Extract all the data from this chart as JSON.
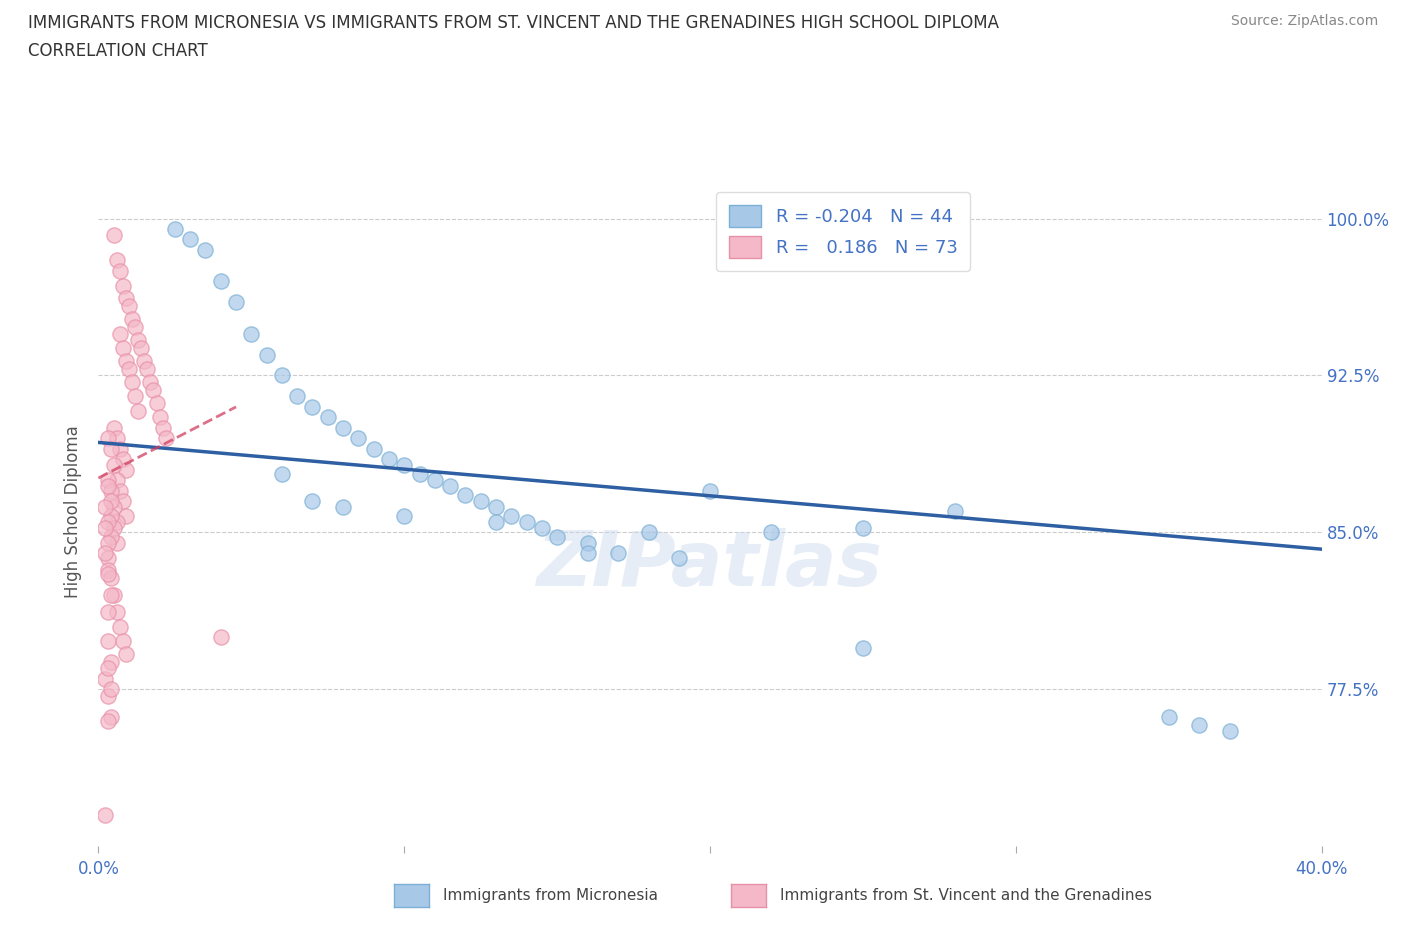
{
  "title_line1": "IMMIGRANTS FROM MICRONESIA VS IMMIGRANTS FROM ST. VINCENT AND THE GRENADINES HIGH SCHOOL DIPLOMA",
  "title_line2": "CORRELATION CHART",
  "source_text": "Source: ZipAtlas.com",
  "ylabel": "High School Diploma",
  "xlim": [
    0.0,
    0.4
  ],
  "ylim": [
    0.7,
    1.02
  ],
  "xticks": [
    0.0,
    0.1,
    0.2,
    0.3,
    0.4
  ],
  "xticklabels": [
    "0.0%",
    "",
    "",
    "",
    "40.0%"
  ],
  "yticks": [
    0.775,
    0.85,
    0.925,
    1.0
  ],
  "yticklabels": [
    "77.5%",
    "85.0%",
    "92.5%",
    "100.0%"
  ],
  "color_blue": "#A8C8E8",
  "color_blue_edge": "#7BAFD4",
  "color_pink": "#F4B8C8",
  "color_pink_edge": "#E890A8",
  "color_blue_line": "#2E5FA3",
  "color_pink_line": "#D04060",
  "watermark": "ZIPatlas",
  "blue_scatter_x": [
    0.025,
    0.03,
    0.035,
    0.04,
    0.045,
    0.05,
    0.055,
    0.06,
    0.065,
    0.07,
    0.075,
    0.08,
    0.085,
    0.09,
    0.095,
    0.1,
    0.105,
    0.11,
    0.115,
    0.12,
    0.125,
    0.13,
    0.135,
    0.14,
    0.145,
    0.15,
    0.16,
    0.17,
    0.18,
    0.19,
    0.2,
    0.22,
    0.25,
    0.28,
    0.06,
    0.07,
    0.08,
    0.1,
    0.13,
    0.16,
    0.35,
    0.36,
    0.37,
    0.25
  ],
  "blue_scatter_y": [
    0.995,
    0.99,
    0.985,
    0.97,
    0.96,
    0.945,
    0.935,
    0.925,
    0.915,
    0.91,
    0.905,
    0.9,
    0.895,
    0.89,
    0.885,
    0.882,
    0.878,
    0.875,
    0.872,
    0.868,
    0.865,
    0.862,
    0.858,
    0.855,
    0.852,
    0.848,
    0.845,
    0.84,
    0.85,
    0.838,
    0.87,
    0.85,
    0.852,
    0.86,
    0.878,
    0.865,
    0.862,
    0.858,
    0.855,
    0.84,
    0.762,
    0.758,
    0.755,
    0.795
  ],
  "pink_scatter_x": [
    0.005,
    0.006,
    0.007,
    0.008,
    0.009,
    0.01,
    0.011,
    0.012,
    0.013,
    0.014,
    0.015,
    0.016,
    0.017,
    0.018,
    0.019,
    0.02,
    0.021,
    0.022,
    0.007,
    0.008,
    0.009,
    0.01,
    0.011,
    0.012,
    0.013,
    0.005,
    0.006,
    0.007,
    0.008,
    0.009,
    0.003,
    0.004,
    0.005,
    0.006,
    0.007,
    0.008,
    0.009,
    0.003,
    0.004,
    0.005,
    0.006,
    0.003,
    0.004,
    0.004,
    0.005,
    0.006,
    0.002,
    0.003,
    0.004,
    0.002,
    0.003,
    0.003,
    0.003,
    0.004,
    0.005,
    0.006,
    0.007,
    0.008,
    0.009,
    0.002,
    0.003,
    0.004,
    0.003,
    0.003,
    0.004,
    0.002,
    0.003,
    0.004,
    0.002,
    0.003,
    0.003,
    0.004,
    0.04
  ],
  "pink_scatter_y": [
    0.992,
    0.98,
    0.975,
    0.968,
    0.962,
    0.958,
    0.952,
    0.948,
    0.942,
    0.938,
    0.932,
    0.928,
    0.922,
    0.918,
    0.912,
    0.905,
    0.9,
    0.895,
    0.945,
    0.938,
    0.932,
    0.928,
    0.922,
    0.915,
    0.908,
    0.9,
    0.895,
    0.89,
    0.885,
    0.88,
    0.895,
    0.89,
    0.882,
    0.875,
    0.87,
    0.865,
    0.858,
    0.875,
    0.87,
    0.862,
    0.855,
    0.872,
    0.865,
    0.858,
    0.852,
    0.845,
    0.862,
    0.855,
    0.848,
    0.852,
    0.845,
    0.838,
    0.832,
    0.828,
    0.82,
    0.812,
    0.805,
    0.798,
    0.792,
    0.84,
    0.83,
    0.82,
    0.812,
    0.798,
    0.788,
    0.78,
    0.772,
    0.762,
    0.715,
    0.785,
    0.76,
    0.775,
    0.8
  ],
  "blue_line_x": [
    0.0,
    0.4
  ],
  "blue_line_y": [
    0.893,
    0.842
  ],
  "pink_line_x": [
    0.0,
    0.045
  ],
  "pink_line_y": [
    0.876,
    0.91
  ],
  "grid_color": "#CCCCCC",
  "bg_color": "#FFFFFF",
  "legend_text": "  R = -0.204   N = 44\n  R =   0.186   N = 73",
  "bottom_legend_blue": "Immigrants from Micronesia",
  "bottom_legend_pink": "Immigrants from St. Vincent and the Grenadines"
}
